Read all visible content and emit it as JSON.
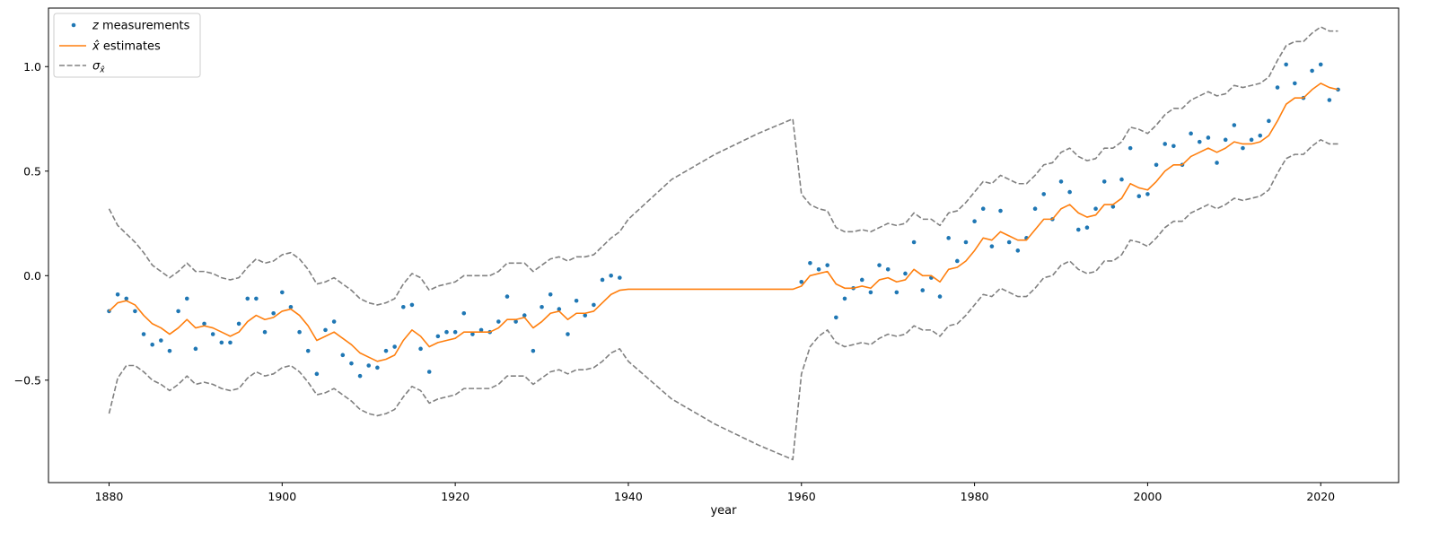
{
  "chart_data": {
    "type": "line",
    "title": "",
    "xlabel": "year",
    "ylabel": "",
    "xlim": [
      1873,
      2029
    ],
    "ylim": [
      -0.99,
      1.28
    ],
    "xticks": [
      1880,
      1900,
      1920,
      1940,
      1960,
      1980,
      2000,
      2020
    ],
    "yticks": [
      -0.5,
      0.0,
      0.5,
      1.0
    ],
    "ytick_labels": [
      "−0.5",
      "0.0",
      "0.5",
      "1.0"
    ],
    "grid": false,
    "legend_position": "top-left",
    "legend": [
      {
        "id": "z",
        "label_italic": "z",
        "label_rest": " measurements",
        "style": "dots",
        "color": "#1f77b4"
      },
      {
        "id": "xhat",
        "label_italic": "x̂",
        "label_rest": " estimates",
        "style": "line",
        "color": "#ff7f0e"
      },
      {
        "id": "sigma",
        "label_italic": "σ",
        "label_sub": "x̂",
        "label_rest": "",
        "style": "dashed",
        "color": "#808080"
      }
    ],
    "series": [
      {
        "name": "z measurements",
        "style": "dots",
        "color": "#1f77b4",
        "x": [
          1880,
          1881,
          1882,
          1883,
          1884,
          1885,
          1886,
          1887,
          1888,
          1889,
          1890,
          1891,
          1892,
          1893,
          1894,
          1895,
          1896,
          1897,
          1898,
          1899,
          1900,
          1901,
          1902,
          1903,
          1904,
          1905,
          1906,
          1907,
          1908,
          1909,
          1910,
          1911,
          1912,
          1913,
          1914,
          1915,
          1916,
          1917,
          1918,
          1919,
          1920,
          1921,
          1922,
          1923,
          1924,
          1925,
          1926,
          1927,
          1928,
          1929,
          1930,
          1931,
          1932,
          1933,
          1934,
          1935,
          1936,
          1937,
          1938,
          1939,
          1960,
          1961,
          1962,
          1963,
          1964,
          1965,
          1966,
          1967,
          1968,
          1969,
          1970,
          1971,
          1972,
          1973,
          1974,
          1975,
          1976,
          1977,
          1978,
          1979,
          1980,
          1981,
          1982,
          1983,
          1984,
          1985,
          1986,
          1987,
          1988,
          1989,
          1990,
          1991,
          1992,
          1993,
          1994,
          1995,
          1996,
          1997,
          1998,
          1999,
          2000,
          2001,
          2002,
          2003,
          2004,
          2005,
          2006,
          2007,
          2008,
          2009,
          2010,
          2011,
          2012,
          2013,
          2014,
          2015,
          2016,
          2017,
          2018,
          2019,
          2020,
          2021,
          2022
        ],
        "y": [
          -0.17,
          -0.09,
          -0.11,
          -0.17,
          -0.28,
          -0.33,
          -0.31,
          -0.36,
          -0.17,
          -0.11,
          -0.35,
          -0.23,
          -0.28,
          -0.32,
          -0.32,
          -0.23,
          -0.11,
          -0.11,
          -0.27,
          -0.18,
          -0.08,
          -0.15,
          -0.27,
          -0.36,
          -0.47,
          -0.26,
          -0.22,
          -0.38,
          -0.42,
          -0.48,
          -0.43,
          -0.44,
          -0.36,
          -0.34,
          -0.15,
          -0.14,
          -0.35,
          -0.46,
          -0.29,
          -0.27,
          -0.27,
          -0.18,
          -0.28,
          -0.26,
          -0.27,
          -0.22,
          -0.1,
          -0.22,
          -0.19,
          -0.36,
          -0.15,
          -0.09,
          -0.16,
          -0.28,
          -0.12,
          -0.19,
          -0.14,
          -0.02,
          0.0,
          -0.01,
          -0.03,
          0.06,
          0.03,
          0.05,
          -0.2,
          -0.11,
          -0.06,
          -0.02,
          -0.08,
          0.05,
          0.03,
          -0.08,
          0.01,
          0.16,
          -0.07,
          -0.01,
          -0.1,
          0.18,
          0.07,
          0.16,
          0.26,
          0.32,
          0.14,
          0.31,
          0.16,
          0.12,
          0.18,
          0.32,
          0.39,
          0.27,
          0.45,
          0.4,
          0.22,
          0.23,
          0.32,
          0.45,
          0.33,
          0.46,
          0.61,
          0.38,
          0.39,
          0.53,
          0.63,
          0.62,
          0.53,
          0.68,
          0.64,
          0.66,
          0.54,
          0.65,
          0.72,
          0.61,
          0.65,
          0.67,
          0.74,
          0.9,
          1.01,
          0.92,
          0.85,
          0.98,
          1.01,
          0.84,
          0.89
        ]
      },
      {
        "name": "x̂ estimates",
        "style": "line",
        "color": "#ff7f0e",
        "x": [
          1880,
          1881,
          1882,
          1883,
          1884,
          1885,
          1886,
          1887,
          1888,
          1889,
          1890,
          1891,
          1892,
          1893,
          1894,
          1895,
          1896,
          1897,
          1898,
          1899,
          1900,
          1901,
          1902,
          1903,
          1904,
          1905,
          1906,
          1907,
          1908,
          1909,
          1910,
          1911,
          1912,
          1913,
          1914,
          1915,
          1916,
          1917,
          1918,
          1919,
          1920,
          1921,
          1922,
          1923,
          1924,
          1925,
          1926,
          1927,
          1928,
          1929,
          1930,
          1931,
          1932,
          1933,
          1934,
          1935,
          1936,
          1937,
          1938,
          1939,
          1940,
          1959,
          1960,
          1961,
          1962,
          1963,
          1964,
          1965,
          1966,
          1967,
          1968,
          1969,
          1970,
          1971,
          1972,
          1973,
          1974,
          1975,
          1976,
          1977,
          1978,
          1979,
          1980,
          1981,
          1982,
          1983,
          1984,
          1985,
          1986,
          1987,
          1988,
          1989,
          1990,
          1991,
          1992,
          1993,
          1994,
          1995,
          1996,
          1997,
          1998,
          1999,
          2000,
          2001,
          2002,
          2003,
          2004,
          2005,
          2006,
          2007,
          2008,
          2009,
          2010,
          2011,
          2012,
          2013,
          2014,
          2015,
          2016,
          2017,
          2018,
          2019,
          2020,
          2021,
          2022
        ],
        "y": [
          -0.17,
          -0.13,
          -0.12,
          -0.14,
          -0.19,
          -0.23,
          -0.25,
          -0.28,
          -0.25,
          -0.21,
          -0.25,
          -0.24,
          -0.25,
          -0.27,
          -0.29,
          -0.27,
          -0.22,
          -0.19,
          -0.21,
          -0.2,
          -0.17,
          -0.16,
          -0.19,
          -0.24,
          -0.31,
          -0.29,
          -0.27,
          -0.3,
          -0.33,
          -0.37,
          -0.39,
          -0.41,
          -0.4,
          -0.38,
          -0.31,
          -0.26,
          -0.29,
          -0.34,
          -0.32,
          -0.31,
          -0.3,
          -0.27,
          -0.27,
          -0.27,
          -0.27,
          -0.25,
          -0.21,
          -0.21,
          -0.2,
          -0.25,
          -0.22,
          -0.18,
          -0.17,
          -0.21,
          -0.18,
          -0.18,
          -0.17,
          -0.13,
          -0.09,
          -0.07,
          -0.065,
          -0.065,
          -0.05,
          0.0,
          0.01,
          0.02,
          -0.04,
          -0.06,
          -0.06,
          -0.05,
          -0.06,
          -0.02,
          -0.01,
          -0.03,
          -0.02,
          0.03,
          0.0,
          0.0,
          -0.03,
          0.03,
          0.04,
          0.07,
          0.12,
          0.18,
          0.17,
          0.21,
          0.19,
          0.17,
          0.17,
          0.22,
          0.27,
          0.27,
          0.32,
          0.34,
          0.3,
          0.28,
          0.29,
          0.34,
          0.34,
          0.37,
          0.44,
          0.42,
          0.41,
          0.45,
          0.5,
          0.53,
          0.53,
          0.57,
          0.59,
          0.61,
          0.59,
          0.61,
          0.64,
          0.63,
          0.63,
          0.64,
          0.67,
          0.74,
          0.82,
          0.85,
          0.85,
          0.89,
          0.92,
          0.9,
          0.89
        ]
      },
      {
        "name": "σ upper",
        "style": "dashed",
        "color": "#808080",
        "x": [
          1880,
          1881,
          1882,
          1883,
          1884,
          1885,
          1886,
          1887,
          1888,
          1889,
          1890,
          1891,
          1892,
          1893,
          1894,
          1895,
          1896,
          1897,
          1898,
          1899,
          1900,
          1901,
          1902,
          1903,
          1904,
          1905,
          1906,
          1907,
          1908,
          1909,
          1910,
          1911,
          1912,
          1913,
          1914,
          1915,
          1916,
          1917,
          1918,
          1919,
          1920,
          1921,
          1922,
          1923,
          1924,
          1925,
          1926,
          1927,
          1928,
          1929,
          1930,
          1931,
          1932,
          1933,
          1934,
          1935,
          1936,
          1937,
          1938,
          1939,
          1940,
          1945,
          1950,
          1955,
          1959,
          1960,
          1961,
          1962,
          1963,
          1964,
          1965,
          1966,
          1967,
          1968,
          1969,
          1970,
          1971,
          1972,
          1973,
          1974,
          1975,
          1976,
          1977,
          1978,
          1979,
          1980,
          1981,
          1982,
          1983,
          1984,
          1985,
          1986,
          1987,
          1988,
          1989,
          1990,
          1991,
          1992,
          1993,
          1994,
          1995,
          1996,
          1997,
          1998,
          1999,
          2000,
          2001,
          2002,
          2003,
          2004,
          2005,
          2006,
          2007,
          2008,
          2009,
          2010,
          2011,
          2012,
          2013,
          2014,
          2015,
          2016,
          2017,
          2018,
          2019,
          2020,
          2021,
          2022
        ],
        "y": [
          0.32,
          0.24,
          0.2,
          0.16,
          0.11,
          0.05,
          0.02,
          -0.01,
          0.02,
          0.06,
          0.02,
          0.02,
          0.01,
          -0.01,
          -0.02,
          -0.01,
          0.04,
          0.08,
          0.06,
          0.07,
          0.1,
          0.11,
          0.08,
          0.03,
          -0.04,
          -0.03,
          -0.01,
          -0.04,
          -0.07,
          -0.11,
          -0.13,
          -0.14,
          -0.13,
          -0.11,
          -0.04,
          0.01,
          -0.01,
          -0.07,
          -0.05,
          -0.04,
          -0.03,
          0.0,
          0.0,
          0.0,
          0.0,
          0.02,
          0.06,
          0.06,
          0.06,
          0.02,
          0.05,
          0.08,
          0.09,
          0.07,
          0.09,
          0.09,
          0.1,
          0.14,
          0.18,
          0.21,
          0.27,
          0.46,
          0.58,
          0.68,
          0.75,
          0.39,
          0.34,
          0.32,
          0.31,
          0.23,
          0.21,
          0.21,
          0.22,
          0.21,
          0.23,
          0.25,
          0.24,
          0.25,
          0.3,
          0.27,
          0.27,
          0.24,
          0.3,
          0.31,
          0.35,
          0.4,
          0.45,
          0.44,
          0.48,
          0.46,
          0.44,
          0.44,
          0.48,
          0.53,
          0.54,
          0.59,
          0.61,
          0.57,
          0.55,
          0.56,
          0.61,
          0.61,
          0.64,
          0.71,
          0.7,
          0.68,
          0.72,
          0.77,
          0.8,
          0.8,
          0.84,
          0.86,
          0.88,
          0.86,
          0.87,
          0.91,
          0.9,
          0.91,
          0.92,
          0.95,
          1.03,
          1.1,
          1.12,
          1.12,
          1.16,
          1.19,
          1.17,
          1.17
        ]
      },
      {
        "name": "σ lower",
        "style": "dashed",
        "color": "#808080",
        "x": [
          1880,
          1881,
          1882,
          1883,
          1884,
          1885,
          1886,
          1887,
          1888,
          1889,
          1890,
          1891,
          1892,
          1893,
          1894,
          1895,
          1896,
          1897,
          1898,
          1899,
          1900,
          1901,
          1902,
          1903,
          1904,
          1905,
          1906,
          1907,
          1908,
          1909,
          1910,
          1911,
          1912,
          1913,
          1914,
          1915,
          1916,
          1917,
          1918,
          1919,
          1920,
          1921,
          1922,
          1923,
          1924,
          1925,
          1926,
          1927,
          1928,
          1929,
          1930,
          1931,
          1932,
          1933,
          1934,
          1935,
          1936,
          1937,
          1938,
          1939,
          1940,
          1945,
          1950,
          1955,
          1959,
          1960,
          1961,
          1962,
          1963,
          1964,
          1965,
          1966,
          1967,
          1968,
          1969,
          1970,
          1971,
          1972,
          1973,
          1974,
          1975,
          1976,
          1977,
          1978,
          1979,
          1980,
          1981,
          1982,
          1983,
          1984,
          1985,
          1986,
          1987,
          1988,
          1989,
          1990,
          1991,
          1992,
          1993,
          1994,
          1995,
          1996,
          1997,
          1998,
          1999,
          2000,
          2001,
          2002,
          2003,
          2004,
          2005,
          2006,
          2007,
          2008,
          2009,
          2010,
          2011,
          2012,
          2013,
          2014,
          2015,
          2016,
          2017,
          2018,
          2019,
          2020,
          2021,
          2022
        ],
        "y": [
          -0.66,
          -0.49,
          -0.43,
          -0.43,
          -0.46,
          -0.5,
          -0.52,
          -0.55,
          -0.52,
          -0.48,
          -0.52,
          -0.51,
          -0.52,
          -0.54,
          -0.55,
          -0.54,
          -0.49,
          -0.46,
          -0.48,
          -0.47,
          -0.44,
          -0.43,
          -0.46,
          -0.51,
          -0.57,
          -0.56,
          -0.54,
          -0.57,
          -0.6,
          -0.64,
          -0.66,
          -0.67,
          -0.66,
          -0.64,
          -0.58,
          -0.53,
          -0.55,
          -0.61,
          -0.59,
          -0.58,
          -0.57,
          -0.54,
          -0.54,
          -0.54,
          -0.54,
          -0.52,
          -0.48,
          -0.48,
          -0.48,
          -0.52,
          -0.49,
          -0.46,
          -0.45,
          -0.47,
          -0.45,
          -0.45,
          -0.44,
          -0.41,
          -0.37,
          -0.35,
          -0.41,
          -0.59,
          -0.71,
          -0.81,
          -0.88,
          -0.47,
          -0.34,
          -0.29,
          -0.26,
          -0.32,
          -0.34,
          -0.33,
          -0.32,
          -0.33,
          -0.3,
          -0.28,
          -0.29,
          -0.28,
          -0.24,
          -0.26,
          -0.26,
          -0.29,
          -0.24,
          -0.23,
          -0.19,
          -0.14,
          -0.09,
          -0.1,
          -0.06,
          -0.08,
          -0.1,
          -0.1,
          -0.06,
          -0.01,
          0.0,
          0.05,
          0.07,
          0.03,
          0.01,
          0.02,
          0.07,
          0.07,
          0.1,
          0.17,
          0.16,
          0.14,
          0.18,
          0.23,
          0.26,
          0.26,
          0.3,
          0.32,
          0.34,
          0.32,
          0.34,
          0.37,
          0.36,
          0.37,
          0.38,
          0.41,
          0.49,
          0.56,
          0.58,
          0.58,
          0.62,
          0.65,
          0.63,
          0.63
        ]
      }
    ]
  }
}
